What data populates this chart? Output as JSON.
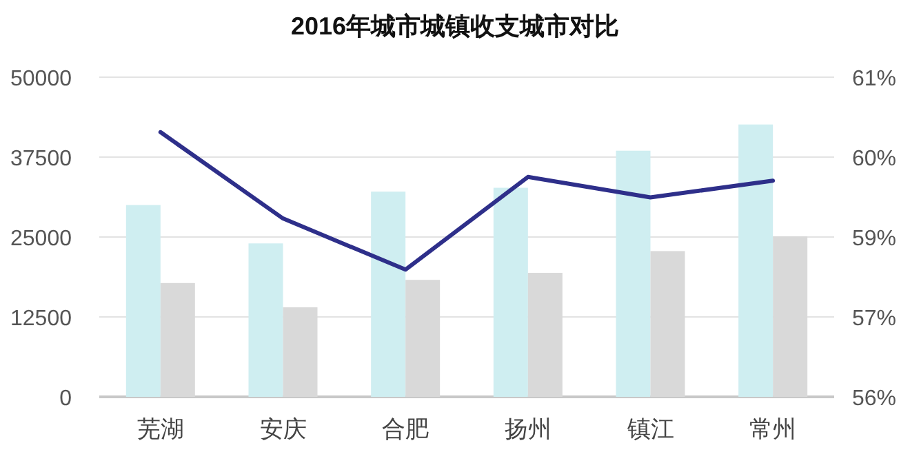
{
  "chart_data": {
    "type": "bar",
    "title": "2016年城市城镇收支城市对比",
    "categories": [
      "芜湖",
      "安庆",
      "合肥",
      "扬州",
      "镇江",
      "常州"
    ],
    "series": [
      {
        "color": "#cfeef1",
        "values": [
          30000,
          24000,
          32100,
          32700,
          38500,
          42600
        ]
      },
      {
        "color": "#d9d9d9",
        "values": [
          17800,
          14000,
          18300,
          19400,
          22800,
          25100
        ]
      },
      {
        "type": "line",
        "axis": "y2",
        "color": "#2e2f8a",
        "values": [
          60.14,
          58.79,
          57.99,
          59.44,
          59.12,
          59.38
        ]
      }
    ],
    "ylim": [
      0,
      50000
    ],
    "yticks": [
      0,
      12500,
      25000,
      37500,
      50000
    ],
    "y2lim": [
      56,
      61
    ],
    "y2ticks": [
      {
        "value": 56,
        "label": "56%"
      },
      {
        "value": 57.25,
        "label": "57%"
      },
      {
        "value": 58.5,
        "label": "59%"
      },
      {
        "value": 59.75,
        "label": "60%"
      },
      {
        "value": 61,
        "label": "61%"
      }
    ],
    "grid": "y",
    "marker": "none"
  }
}
